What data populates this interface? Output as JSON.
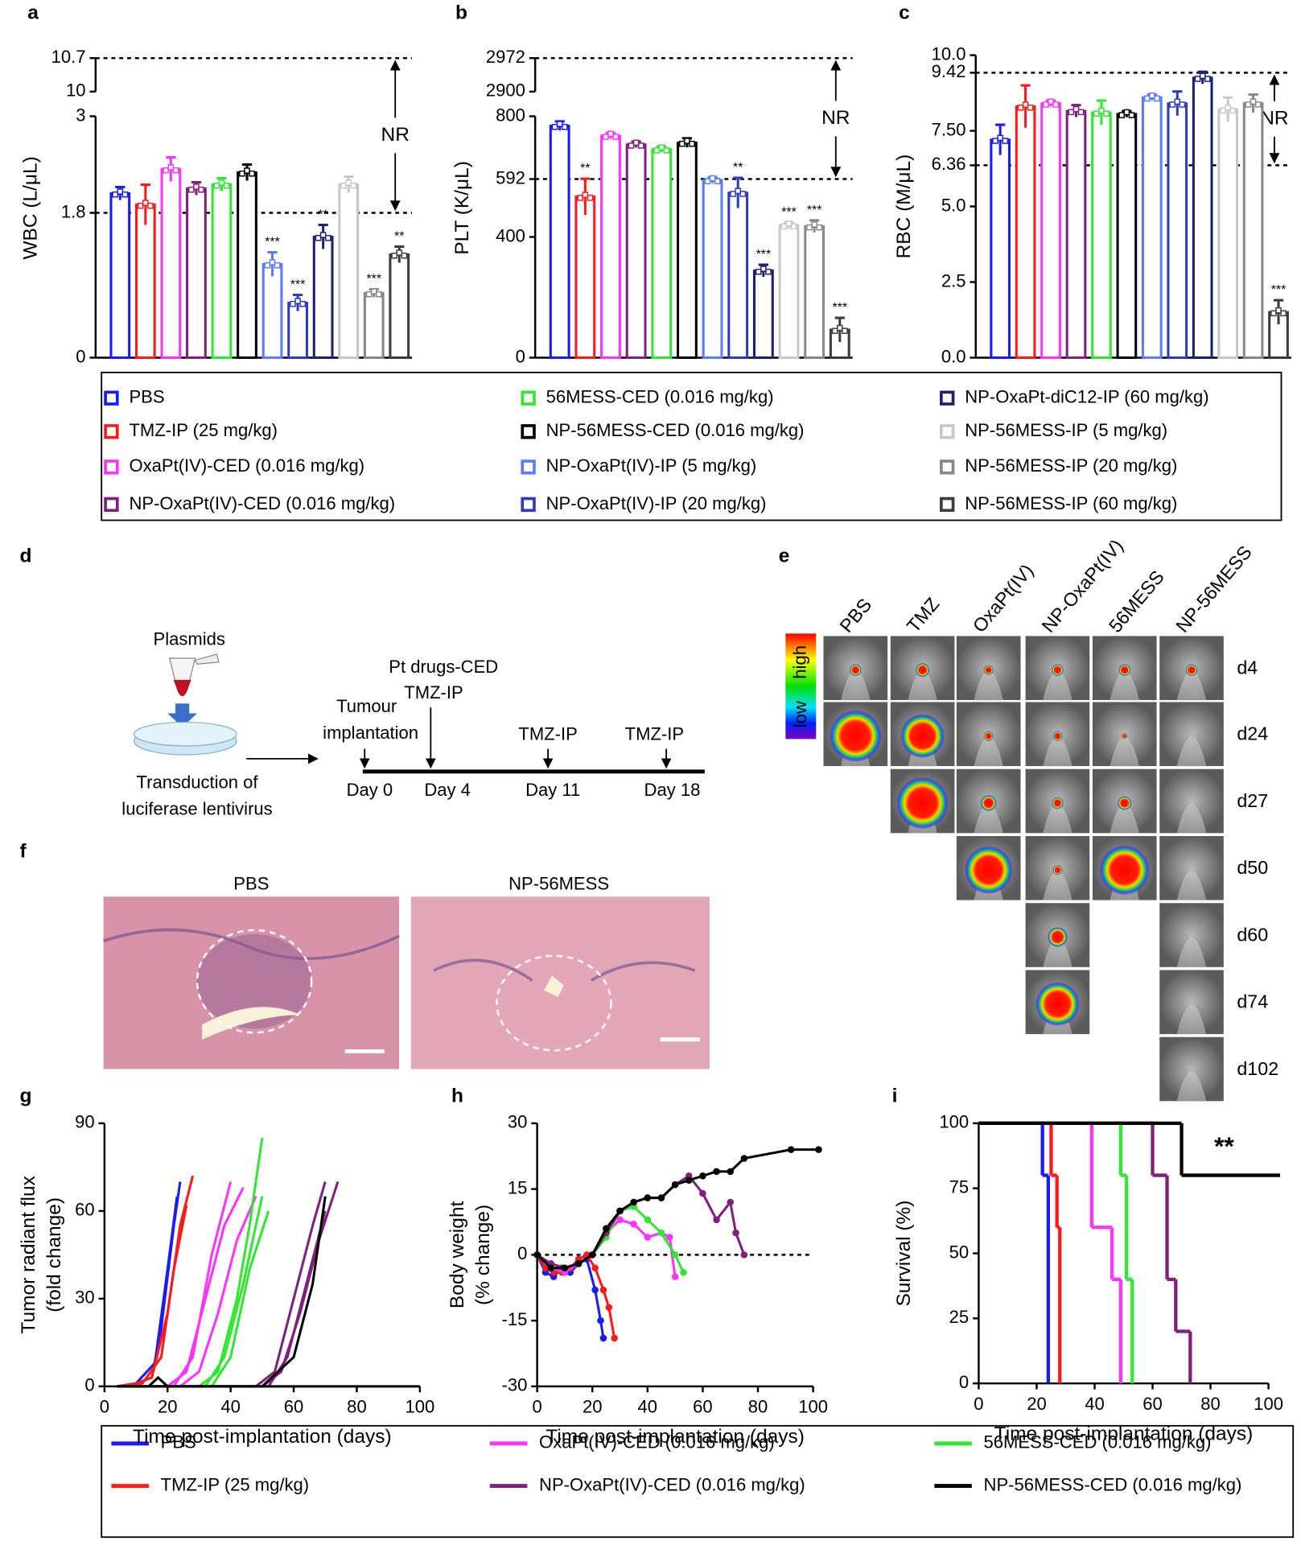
{
  "panel_labels": [
    "a",
    "b",
    "c",
    "d",
    "e",
    "f",
    "g",
    "h",
    "i"
  ],
  "legend_top": [
    {
      "name": "PBS",
      "color": "#1a1aff"
    },
    {
      "name": "TMZ-IP (25 mg/kg)",
      "color": "#ff1a1a"
    },
    {
      "name": "OxaPt(IV)-CED (0.016 mg/kg)",
      "color": "#ff33ff"
    },
    {
      "name": "NP-OxaPt(IV)-CED (0.016 mg/kg)",
      "color": "#80207a"
    },
    {
      "name": "56MESS-CED (0.016 mg/kg)",
      "color": "#33e633"
    },
    {
      "name": "NP-56MESS-CED (0.016 mg/kg)",
      "color": "#000000"
    },
    {
      "name": "NP-OxaPt(IV)-IP (5 mg/kg)",
      "color": "#5c7cff"
    },
    {
      "name": "NP-OxaPt(IV)-IP (20 mg/kg)",
      "color": "#2e3bbf"
    },
    {
      "name": "NP-OxaPt-diC12-IP (60 mg/kg)",
      "color": "#1c2170"
    },
    {
      "name": "NP-56MESS-IP (5 mg/kg)",
      "color": "#c8c8c8"
    },
    {
      "name": "NP-56MESS-IP (20 mg/kg)",
      "color": "#888888"
    },
    {
      "name": "NP-56MESS-IP (60 mg/kg)",
      "color": "#3c3c3c"
    }
  ],
  "chart_data": [
    {
      "type": "bar",
      "ylabel": "WBC (L/μL)",
      "values": [
        2.04,
        1.9,
        2.34,
        2.1,
        2.15,
        2.3,
        1.16,
        0.68,
        1.5,
        2.15,
        0.8,
        1.28
      ],
      "errors": [
        0.08,
        0.25,
        0.15,
        0.08,
        0.08,
        0.1,
        0.15,
        0.1,
        0.15,
        0.1,
        0.05,
        0.1
      ],
      "annotations": [
        null,
        null,
        null,
        null,
        null,
        null,
        "***",
        "***",
        "**",
        null,
        "***",
        "**"
      ],
      "ylim": [
        0,
        3
      ],
      "yticks": [
        0,
        1.8,
        3
      ],
      "ylim_upper": [
        10,
        10.7
      ],
      "yticks_upper": [
        10,
        10.7
      ],
      "reference_lines": [
        10.7,
        1.8
      ],
      "reference_label": "NR"
    },
    {
      "type": "bar",
      "ylabel": "PLT (K/μL)",
      "values": [
        768,
        533,
        735,
        706,
        690,
        712,
        588,
        546,
        288,
        438,
        435,
        92
      ],
      "errors": [
        15,
        60,
        10,
        10,
        10,
        15,
        10,
        50,
        20,
        10,
        20,
        40
      ],
      "annotations": [
        null,
        "**",
        null,
        null,
        null,
        null,
        null,
        "**",
        "***",
        "***",
        "***",
        "***"
      ],
      "ylim": [
        0,
        800
      ],
      "yticks": [
        0,
        400,
        592,
        800
      ],
      "ylim_upper": [
        2900,
        2972
      ],
      "yticks_upper": [
        2900,
        2972
      ],
      "reference_lines": [
        2972,
        592
      ],
      "reference_label": "NR"
    },
    {
      "type": "bar",
      "ylabel": "RBC (M/μL)",
      "values": [
        7.2,
        8.3,
        8.4,
        8.15,
        8.1,
        8.05,
        8.6,
        8.4,
        9.25,
        8.2,
        8.4,
        1.5
      ],
      "errors": [
        0.5,
        0.7,
        0.1,
        0.2,
        0.4,
        0.1,
        0.1,
        0.4,
        0.2,
        0.4,
        0.3,
        0.4
      ],
      "annotations": [
        null,
        null,
        null,
        null,
        null,
        null,
        null,
        null,
        null,
        null,
        null,
        "***"
      ],
      "ylim": [
        0,
        10
      ],
      "yticks": [
        {
          "value": 0,
          "label": "0.0"
        },
        2.5,
        {
          "value": 5,
          "label": "5.0"
        },
        6.36,
        {
          "value": 7.5,
          "label": "7.50"
        },
        9.42,
        {
          "value": 10,
          "label": "10.0"
        }
      ],
      "reference_lines": [
        9.42,
        6.36
      ],
      "reference_label": "NR"
    },
    {
      "type": "line",
      "xlabel": "Time post-implantation (days)",
      "ylabel": [
        "Tumor radiant flux",
        "(fold change)"
      ],
      "xlim": [
        0,
        100
      ],
      "xticks": [
        0,
        20,
        40,
        60,
        80,
        100
      ],
      "ylim": [
        0,
        90
      ],
      "yticks": [
        0,
        30,
        60,
        90
      ],
      "series": [
        {
          "color": "#1a1aff",
          "x": [
            4,
            10,
            15,
            18,
            22,
            24
          ],
          "values": [
            0,
            1,
            3,
            20,
            55,
            70
          ]
        },
        {
          "color": "#1a1aff",
          "x": [
            4,
            10,
            16,
            20,
            23
          ],
          "values": [
            0,
            1,
            8,
            40,
            65
          ]
        },
        {
          "color": "#ff1a1a",
          "x": [
            4,
            10,
            15,
            20,
            24,
            28
          ],
          "values": [
            0,
            1,
            3,
            25,
            55,
            72
          ]
        },
        {
          "color": "#ff1a1a",
          "x": [
            4,
            12,
            18,
            22,
            26
          ],
          "values": [
            0,
            1,
            10,
            40,
            62
          ]
        },
        {
          "color": "#ff33ff",
          "x": [
            4,
            20,
            26,
            32,
            38,
            44
          ],
          "values": [
            0,
            0,
            5,
            30,
            55,
            68
          ]
        },
        {
          "color": "#ff33ff",
          "x": [
            4,
            22,
            28,
            34,
            40
          ],
          "values": [
            0,
            0,
            10,
            45,
            70
          ]
        },
        {
          "color": "#ff33ff",
          "x": [
            4,
            24,
            30,
            36,
            42,
            48
          ],
          "values": [
            0,
            0,
            5,
            25,
            50,
            65
          ]
        },
        {
          "color": "#33e633",
          "x": [
            4,
            30,
            36,
            42,
            46,
            50
          ],
          "values": [
            0,
            0,
            5,
            30,
            55,
            85
          ]
        },
        {
          "color": "#33e633",
          "x": [
            4,
            32,
            38,
            44,
            50
          ],
          "values": [
            0,
            0,
            10,
            35,
            65
          ]
        },
        {
          "color": "#33e633",
          "x": [
            4,
            34,
            40,
            46,
            52
          ],
          "values": [
            0,
            0,
            10,
            40,
            60
          ]
        },
        {
          "color": "#80207a",
          "x": [
            4,
            50,
            56,
            62,
            68,
            74
          ],
          "values": [
            0,
            0,
            5,
            25,
            50,
            70
          ]
        },
        {
          "color": "#80207a",
          "x": [
            4,
            48,
            54,
            60,
            66,
            70
          ],
          "values": [
            0,
            0,
            5,
            30,
            55,
            70
          ]
        },
        {
          "color": "#80207a",
          "x": [
            4,
            52,
            58,
            64,
            70
          ],
          "values": [
            0,
            0,
            10,
            35,
            60
          ]
        },
        {
          "color": "#000000",
          "x": [
            4,
            14,
            17,
            20,
            50,
            60,
            66,
            70
          ],
          "values": [
            0,
            0,
            3,
            0,
            0,
            10,
            35,
            65
          ]
        },
        {
          "color": "#000000",
          "x": [
            4,
            100
          ],
          "values": [
            0,
            0
          ]
        }
      ]
    },
    {
      "type": "line",
      "markers": true,
      "xlabel": "Time post-implantation (days)",
      "ylabel": [
        "Body weight",
        "(% change)"
      ],
      "xlim": [
        0,
        100
      ],
      "xticks": [
        0,
        20,
        40,
        60,
        80,
        100
      ],
      "ylim": [
        -30,
        30
      ],
      "yticks": [
        -30,
        -15,
        0,
        15,
        30
      ],
      "reference_lines": [
        0
      ],
      "series": [
        {
          "color": "#1a1aff",
          "x": [
            0,
            3,
            6,
            9,
            12,
            15,
            18,
            21,
            23,
            24
          ],
          "values": [
            0,
            -4,
            -5,
            -3,
            -4,
            -2,
            -1,
            -8,
            -15,
            -19
          ]
        },
        {
          "color": "#ff1a1a",
          "x": [
            0,
            3,
            6,
            9,
            12,
            15,
            18,
            21,
            24,
            26,
            28
          ],
          "values": [
            0,
            -3,
            -4,
            -4,
            -3,
            -1,
            0,
            -3,
            -8,
            -12,
            -19
          ]
        },
        {
          "color": "#ff33ff",
          "x": [
            0,
            5,
            10,
            15,
            20,
            25,
            30,
            35,
            40,
            45,
            48,
            50
          ],
          "values": [
            0,
            -3,
            -4,
            -2,
            0,
            5,
            8,
            7,
            4,
            5,
            4,
            -5
          ]
        },
        {
          "color": "#33e633",
          "x": [
            0,
            5,
            10,
            15,
            20,
            25,
            30,
            35,
            40,
            45,
            50,
            53
          ],
          "values": [
            0,
            -3,
            -3,
            -2,
            0,
            4,
            10,
            11,
            8,
            5,
            0,
            -4
          ]
        },
        {
          "color": "#80207a",
          "x": [
            0,
            5,
            10,
            15,
            20,
            25,
            30,
            35,
            40,
            45,
            50,
            55,
            60,
            65,
            70,
            72,
            75
          ],
          "values": [
            0,
            -2,
            -3,
            -2,
            0,
            5,
            10,
            12,
            13,
            13,
            16,
            18,
            14,
            8,
            12,
            5,
            0
          ]
        },
        {
          "color": "#000000",
          "x": [
            0,
            5,
            10,
            15,
            20,
            25,
            30,
            35,
            40,
            45,
            50,
            55,
            60,
            65,
            70,
            75,
            92,
            102
          ],
          "values": [
            0,
            -3,
            -3,
            -2,
            0,
            6,
            10,
            12,
            13,
            13,
            16,
            17,
            18,
            19,
            19,
            22,
            24,
            24
          ]
        }
      ]
    },
    {
      "type": "step",
      "xlabel": "Time post-implantation (days)",
      "ylabel": "Survival (%)",
      "xlim": [
        0,
        100
      ],
      "xticks": [
        0,
        20,
        40,
        60,
        80,
        100
      ],
      "ylim": [
        0,
        100
      ],
      "yticks": [
        0,
        25,
        50,
        75,
        100
      ],
      "annotation": "**",
      "series": [
        {
          "color": "#1a1aff",
          "x": [
            0,
            22,
            24
          ],
          "values": [
            100,
            80,
            0
          ]
        },
        {
          "color": "#ff1a1a",
          "x": [
            0,
            25,
            27,
            28
          ],
          "values": [
            100,
            80,
            60,
            0
          ]
        },
        {
          "color": "#ff33ff",
          "x": [
            0,
            39,
            46,
            49
          ],
          "values": [
            100,
            60,
            40,
            0
          ]
        },
        {
          "color": "#33e633",
          "x": [
            0,
            49,
            51,
            53
          ],
          "values": [
            100,
            80,
            40,
            0
          ]
        },
        {
          "color": "#80207a",
          "x": [
            0,
            60,
            65,
            68,
            73
          ],
          "values": [
            100,
            80,
            40,
            20,
            0
          ]
        },
        {
          "color": "#000000",
          "x": [
            0,
            70,
            104
          ],
          "values": [
            100,
            80,
            80
          ]
        }
      ]
    }
  ],
  "schematic": {
    "plasmids": "Plasmids",
    "transduction": [
      "Transduction of",
      "luciferase lentivirus"
    ],
    "implantation": [
      "Tumour",
      "implantation"
    ],
    "ced": "Pt drugs-CED",
    "treatments": [
      "TMZ-IP",
      "TMZ-IP",
      "TMZ-IP"
    ],
    "days": [
      "Day 0",
      "Day 4",
      "Day 11",
      "Day 18"
    ]
  },
  "imaging": {
    "groups": [
      "PBS",
      "TMZ",
      "OxaPt(IV)",
      "NP-OxaPt(IV)",
      "56MESS",
      "NP-56MESS"
    ],
    "days": [
      "d4",
      "d24",
      "d27",
      "d50",
      "d60",
      "d74",
      "d102"
    ],
    "scale": [
      "high",
      "low"
    ]
  },
  "histology": {
    "groups": [
      "PBS",
      "NP-56MESS"
    ]
  }
}
